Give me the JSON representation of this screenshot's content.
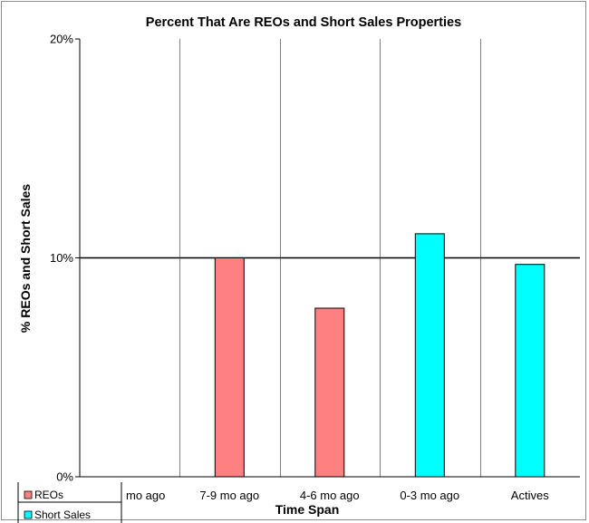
{
  "chart_data": {
    "type": "bar",
    "title": "Percent That Are REOs and Short Sales Properties",
    "xlabel": "Time Span",
    "ylabel": "% REOs and Short Sales",
    "categories": [
      "mo ago",
      "7-9 mo ago",
      "4-6 mo ago",
      "0-3 mo ago",
      "Actives"
    ],
    "ylim": [
      0,
      20
    ],
    "yticks": [
      0,
      10,
      20
    ],
    "ytick_labels": [
      "0%",
      "10%",
      "20%"
    ],
    "grid": "vertical category separators; horizontal reference line at 10%",
    "legend_position": "bottom-left",
    "series": [
      {
        "name": "REOs",
        "color": "#ff8080",
        "values": [
          0,
          10.0,
          7.7,
          0,
          0
        ]
      },
      {
        "name": "Short Sales",
        "color": "#00ffff",
        "values": [
          0,
          0,
          0,
          11.1,
          9.7
        ]
      }
    ]
  }
}
